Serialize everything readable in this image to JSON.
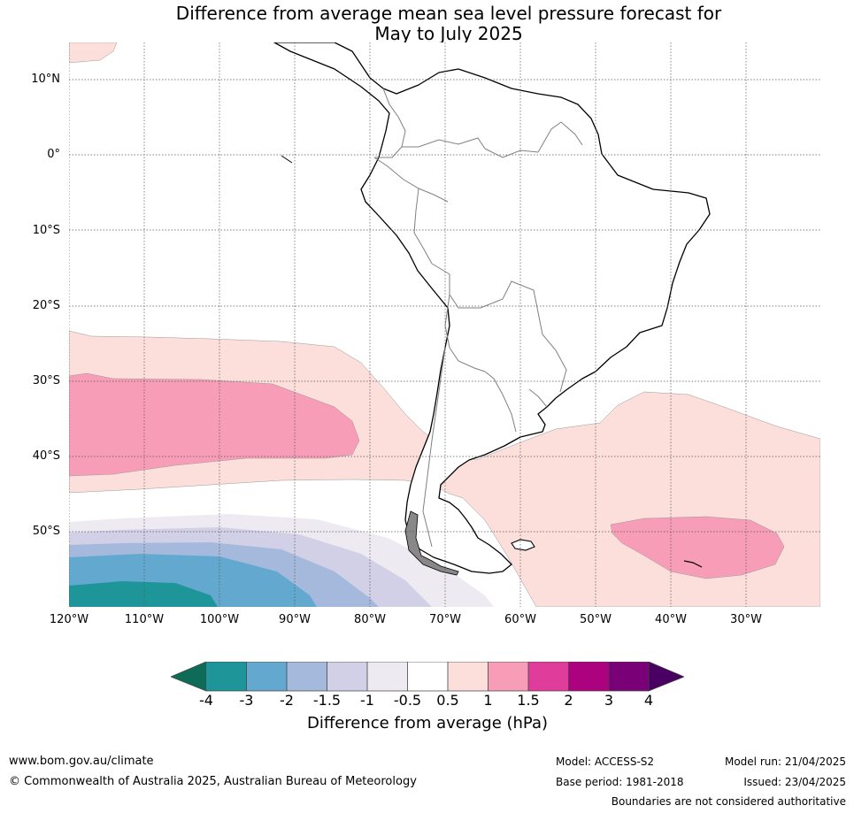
{
  "title_line1": "Difference from average mean sea level pressure forecast for",
  "title_line2": "May to July 2025",
  "map": {
    "lat_range": [
      -60,
      15
    ],
    "lon_range": [
      -120,
      -20
    ],
    "lat_labels": [
      "10°N",
      "0°",
      "10°S",
      "20°S",
      "30°S",
      "40°S",
      "50°S"
    ],
    "lon_labels": [
      "120°W",
      "110°W",
      "100°W",
      "90°W",
      "80°W",
      "70°W",
      "60°W",
      "50°W",
      "40°W",
      "30°W"
    ],
    "colors": {
      "land_outline": "#000000",
      "border": "#808080",
      "gridline": "#555555"
    }
  },
  "colorbar": {
    "label": "Difference from average (hPa)",
    "ticks": [
      "-4",
      "-3",
      "-2",
      "-1.5",
      "-1",
      "-0.5",
      "0.5",
      "1",
      "1.5",
      "2",
      "3",
      "4"
    ],
    "under_color": "#0d6b58",
    "over_color": "#4a0063",
    "bins": [
      {
        "range": "-4 to -3",
        "color": "#1e9599"
      },
      {
        "range": "-3 to -2",
        "color": "#63a9cf"
      },
      {
        "range": "-2 to -1.5",
        "color": "#a5b9dc"
      },
      {
        "range": "-1.5 to -1",
        "color": "#d1d0e6"
      },
      {
        "range": "-1 to -0.5",
        "color": "#eeeaf1"
      },
      {
        "range": "-0.5 to 0.5",
        "color": "#ffffff"
      },
      {
        "range": "0.5 to 1",
        "color": "#fcdedb"
      },
      {
        "range": "1 to 1.5",
        "color": "#f89db7"
      },
      {
        "range": "1.5 to 2",
        "color": "#df3c9b"
      },
      {
        "range": "2 to 3",
        "color": "#ac0280"
      },
      {
        "range": "3 to 4",
        "color": "#7a0078"
      }
    ]
  },
  "footer": {
    "website": "www.bom.gov.au/climate",
    "copyright": "© Commonwealth of Australia 2025, Australian Bureau of Meteorology",
    "model": "Model: ACCESS-S2",
    "base_period": "Base period: 1981-2018",
    "model_run": "Model run: 21/04/2025",
    "issued": "Issued: 23/04/2025",
    "disclaimer": "Boundaries are not considered authoritative"
  }
}
